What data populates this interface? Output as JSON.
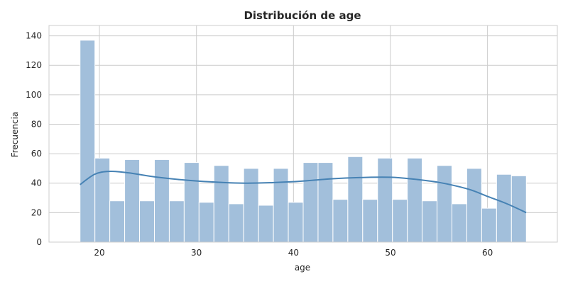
{
  "chart_data": {
    "type": "bar",
    "title": "Distribución de age",
    "xlabel": "age",
    "ylabel": "Frecuencia",
    "x_range": [
      18,
      64
    ],
    "xlim": [
      14.8,
      67.2
    ],
    "ylim": [
      0,
      147
    ],
    "x_ticks": [
      20,
      30,
      40,
      50,
      60
    ],
    "y_ticks": [
      0,
      20,
      40,
      60,
      80,
      100,
      120,
      140
    ],
    "grid": true,
    "bins": 30,
    "values": [
      137,
      57,
      28,
      56,
      28,
      56,
      28,
      54,
      27,
      52,
      26,
      50,
      25,
      50,
      27,
      54,
      54,
      29,
      58,
      29,
      57,
      29,
      57,
      28,
      52,
      26,
      50,
      23,
      46,
      45
    ],
    "kde": {
      "x": [
        18,
        19.5,
        21,
        23,
        26,
        30,
        35,
        40,
        44,
        48,
        50,
        52,
        55,
        58,
        60,
        62,
        64
      ],
      "y": [
        39,
        46,
        48,
        47,
        44,
        41.5,
        40,
        41,
        43,
        44,
        44,
        43,
        40.5,
        36,
        31,
        26,
        20
      ]
    },
    "colors": {
      "bar_fill": "#a2bfdb",
      "bar_stroke": "#ffffff",
      "kde_line": "#4682b4",
      "grid": "#cccccc",
      "axis_spine": "#cccccc",
      "text": "#262626"
    }
  }
}
